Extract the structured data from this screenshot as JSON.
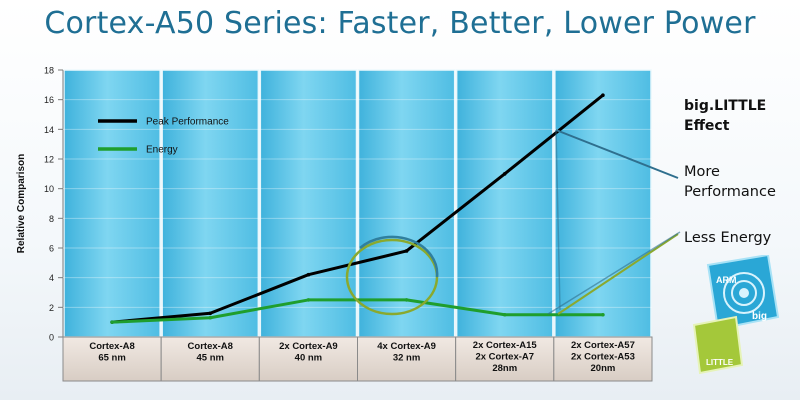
{
  "slide": {
    "title": "Cortex-A50 Series: Faster, Better, Lower Power"
  },
  "annotations": {
    "effect": [
      "big.LITTLE",
      "Effect"
    ],
    "more_performance": [
      "More",
      "Performance"
    ],
    "less_energy": "Less Energy"
  },
  "logo": {
    "arm_text": "ARM",
    "big_text": "big",
    "little_text": "LITTLE"
  },
  "colors": {
    "peak": "#000000",
    "energy": "#1f9e2d",
    "title": "#1f6f94",
    "column": "#63c8e8",
    "ellipse_green": "#8aa92e",
    "ellipse_blue": "#2f7f9e"
  },
  "chart_data": {
    "type": "line",
    "ylabel": "Relative Comparison",
    "ylim": [
      0,
      18
    ],
    "yticks": [
      0,
      2,
      4,
      6,
      8,
      10,
      12,
      14,
      16,
      18
    ],
    "categories": [
      [
        "Cortex-A8",
        "65 nm"
      ],
      [
        "Cortex-A8",
        "45 nm"
      ],
      [
        "2x Cortex-A9",
        "40 nm"
      ],
      [
        "4x Cortex-A9",
        "32 nm"
      ],
      [
        "2x Cortex-A15",
        "2x Cortex-A7",
        "28nm"
      ],
      [
        "2x Cortex-A57",
        "2x Cortex-A53",
        "20nm"
      ]
    ],
    "series": [
      {
        "name": "Peak Performance",
        "color": "#000000",
        "x": [
          0.5,
          1.5,
          2.5,
          3.5,
          4.5,
          5.5
        ],
        "values": [
          1.0,
          1.6,
          4.2,
          5.8,
          11.0,
          16.3
        ]
      },
      {
        "name": "Energy",
        "color": "#1f9e2d",
        "x": [
          0.5,
          1.5,
          2.5,
          3.5,
          4.5,
          5.5
        ],
        "values": [
          1.0,
          1.3,
          2.5,
          2.5,
          1.5,
          1.5
        ]
      }
    ],
    "legend": "top-left"
  }
}
